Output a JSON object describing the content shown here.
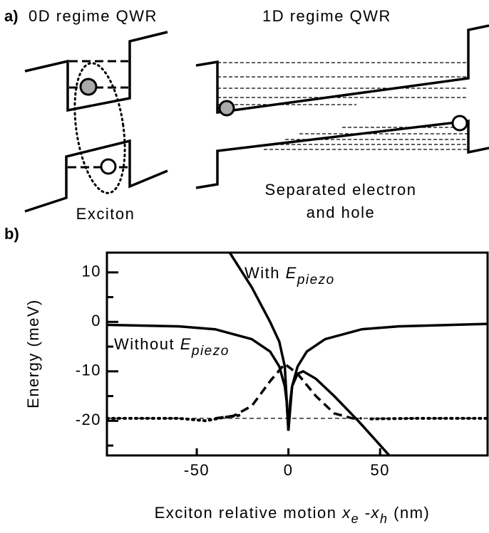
{
  "panel_a": {
    "label": "a)",
    "title_left": "0D regime QWR",
    "title_right": "1D regime QWR",
    "caption_left": "Exciton",
    "caption_right": [
      "Separated electron",
      "and hole"
    ]
  },
  "chart_data": {
    "type": "line",
    "panel_label": "b)",
    "ylabel": "Energy (meV)",
    "xlabel": [
      "Exciton relative motion ",
      "x",
      "e",
      " -",
      "x",
      "h",
      "  (nm)"
    ],
    "xlim": [
      -99,
      109
    ],
    "ylim": [
      -27,
      14
    ],
    "xticks": [
      -50,
      0,
      50
    ],
    "yticks": [
      10,
      0,
      -10,
      -20
    ],
    "yticks_minor": [
      5,
      -5,
      -15,
      -25
    ],
    "annotations": [
      {
        "text": "With ",
        "symbol": "E",
        "subscript": "piezo"
      },
      {
        "text": "Without ",
        "symbol": "E",
        "subscript": "piezo"
      }
    ],
    "series": [
      {
        "color": "#000000",
        "style": "solid",
        "x": [
          -99,
          -60,
          -40,
          -20,
          -10,
          -5,
          -2,
          -1,
          0,
          1,
          2,
          5,
          10,
          20,
          40,
          60,
          109
        ],
        "values": [
          -0.6,
          -0.9,
          -1.5,
          -3.5,
          -6,
          -9,
          -13,
          -16,
          -22,
          -16,
          -13,
          -9,
          -6,
          -3.5,
          -1.5,
          -0.9,
          -0.4
        ]
      },
      {
        "color": "#000000",
        "style": "solid",
        "x": [
          -32,
          -20,
          -10,
          -5,
          -2,
          0,
          2,
          5,
          8,
          15,
          25,
          38,
          55
        ],
        "values": [
          14,
          7,
          0,
          -4,
          -9,
          -22,
          -13,
          -10.5,
          -10,
          -11.5,
          -15,
          -20,
          -27
        ]
      },
      {
        "color": "#000000",
        "style": "dashed",
        "x": [
          -40,
          -30,
          -20,
          -10,
          -2,
          5,
          15,
          25,
          35,
          40
        ],
        "values": [
          -19.5,
          -19,
          -17,
          -12,
          -8.5,
          -10.5,
          -15,
          -18.5,
          -19.5,
          -19.5
        ]
      },
      {
        "color": "#000000",
        "style": "dotted",
        "x": [
          -99,
          -60,
          -45,
          -35,
          -25,
          0,
          45,
          70,
          109
        ],
        "values": [
          -19.5,
          -19.5,
          -20,
          -19.3,
          -18.8,
          null,
          -19.6,
          -19.5,
          -19.5
        ]
      },
      {
        "color": "#000000",
        "style": "thin",
        "x": [
          -99,
          109
        ],
        "values": [
          -19.5,
          -19.5
        ]
      }
    ]
  }
}
